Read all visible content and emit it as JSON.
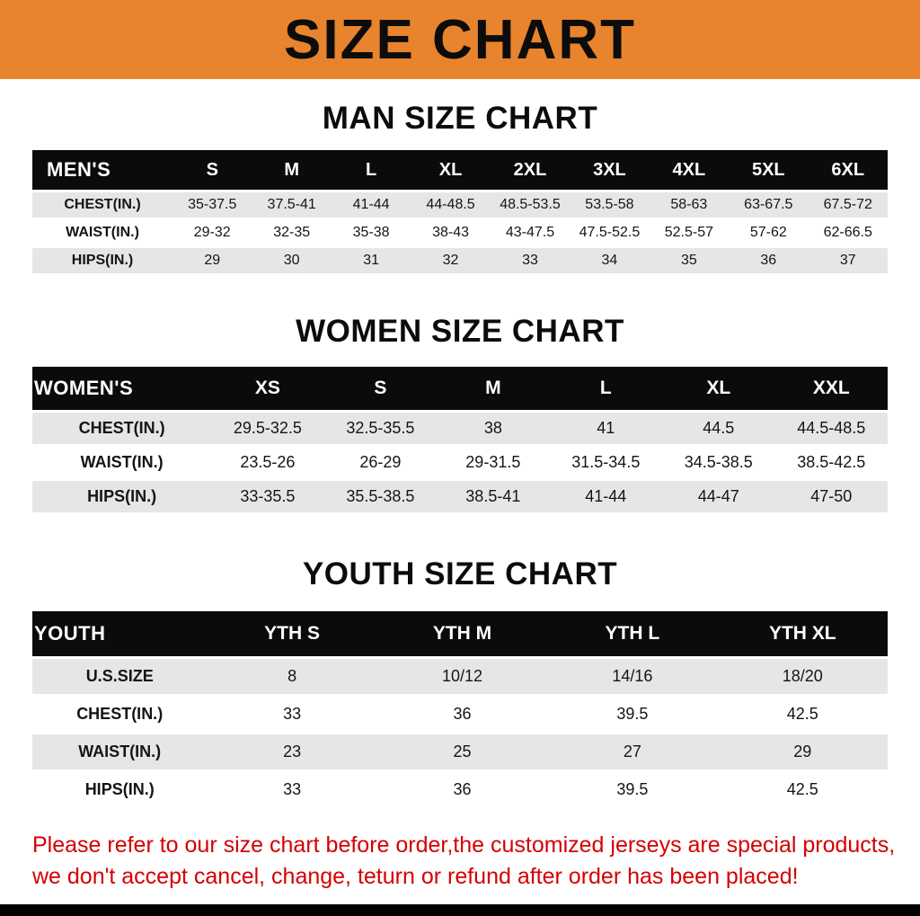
{
  "banner": {
    "title": "SIZE CHART",
    "bg_color": "#E8842D"
  },
  "colors": {
    "header_bg": "#0B0B0B",
    "row_alt_bg": "#E6E6E6",
    "notice_text": "#D40000",
    "bottom_bar": "#000000"
  },
  "sections": [
    {
      "heading": "MAN SIZE CHART",
      "table": {
        "header": [
          "MEN'S",
          "S",
          "M",
          "L",
          "XL",
          "2XL",
          "3XL",
          "4XL",
          "5XL",
          "6XL"
        ],
        "rows": [
          [
            "CHEST(IN.)",
            "35-37.5",
            "37.5-41",
            "41-44",
            "44-48.5",
            "48.5-53.5",
            "53.5-58",
            "58-63",
            "63-67.5",
            "67.5-72"
          ],
          [
            "WAIST(IN.)",
            "29-32",
            "32-35",
            "35-38",
            "38-43",
            "43-47.5",
            "47.5-52.5",
            "52.5-57",
            "57-62",
            "62-66.5"
          ],
          [
            "HIPS(IN.)",
            "29",
            "30",
            "31",
            "32",
            "33",
            "34",
            "35",
            "36",
            "37"
          ]
        ]
      }
    },
    {
      "heading": "WOMEN SIZE CHART",
      "table": {
        "header": [
          "WOMEN'S",
          "XS",
          "S",
          "M",
          "L",
          "XL",
          "XXL"
        ],
        "rows": [
          [
            "CHEST(IN.)",
            "29.5-32.5",
            "32.5-35.5",
            "38",
            "41",
            "44.5",
            "44.5-48.5"
          ],
          [
            "WAIST(IN.)",
            "23.5-26",
            "26-29",
            "29-31.5",
            "31.5-34.5",
            "34.5-38.5",
            "38.5-42.5"
          ],
          [
            "HIPS(IN.)",
            "33-35.5",
            "35.5-38.5",
            "38.5-41",
            "41-44",
            "44-47",
            "47-50"
          ]
        ]
      }
    },
    {
      "heading": "YOUTH SIZE CHART",
      "table": {
        "header": [
          "YOUTH",
          "YTH S",
          "YTH M",
          "YTH L",
          "YTH XL"
        ],
        "rows": [
          [
            "U.S.SIZE",
            "8",
            "10/12",
            "14/16",
            "18/20"
          ],
          [
            "CHEST(IN.)",
            "33",
            "36",
            "39.5",
            "42.5"
          ],
          [
            "WAIST(IN.)",
            "23",
            "25",
            "27",
            "29"
          ],
          [
            "HIPS(IN.)",
            "33",
            "36",
            "39.5",
            "42.5"
          ]
        ]
      }
    }
  ],
  "footer": {
    "notice_lines": [
      "Please refer to our size chart before order,the customized jerseys are special products,",
      "we don't accept cancel, change, teturn or refund after order has been placed!"
    ]
  }
}
